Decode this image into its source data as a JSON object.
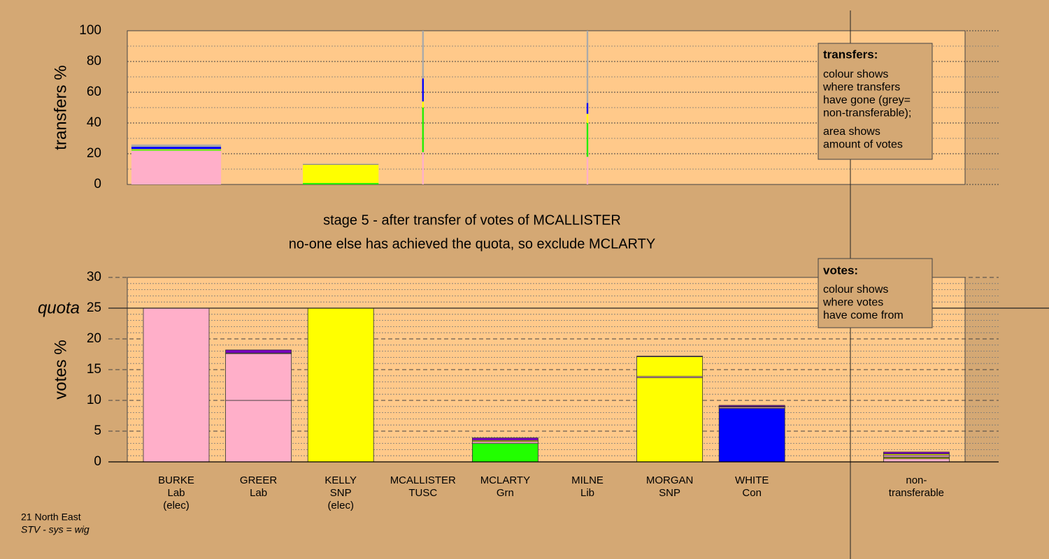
{
  "chart_data": [
    {
      "type": "stacked-bar",
      "y_label": "transfers %",
      "ylim": [
        0,
        100
      ],
      "yticks": [
        0,
        20,
        40,
        60,
        80,
        100
      ],
      "minor_grid": [
        10,
        30,
        50,
        70,
        90
      ],
      "bar_widths": [
        1.09,
        0,
        0.92,
        0.02,
        0,
        0.02,
        0,
        0,
        null,
        0
      ],
      "series": [
        {
          "color": "#ffafc9",
          "values": [
            22,
            0,
            0,
            21,
            0,
            18,
            0,
            0,
            null,
            0
          ]
        },
        {
          "color": "#22ee00",
          "values": [
            0.5,
            0,
            1,
            29,
            0,
            22,
            0,
            0,
            null,
            0
          ]
        },
        {
          "color": "#ffff00",
          "values": [
            0.5,
            0,
            12,
            4,
            0,
            6,
            0,
            0,
            null,
            0
          ]
        },
        {
          "color": "#0000ff",
          "values": [
            1.5,
            0,
            0.2,
            15,
            0,
            7,
            0,
            0,
            null,
            0
          ]
        },
        {
          "color": "#aaaaaa",
          "values": [
            1.5,
            0,
            0.3,
            31,
            0,
            47,
            0,
            0,
            null,
            0
          ]
        }
      ],
      "note": {
        "title": "transfers:",
        "paragraphs": [
          [
            "colour shows",
            "where transfers",
            "have gone (grey=",
            "non-transferable);"
          ],
          [
            "area shows",
            "amount of votes"
          ]
        ]
      }
    },
    {
      "type": "stacked-bar",
      "y_label": "votes %",
      "ylim": [
        0,
        30
      ],
      "yticks": [
        0,
        5,
        10,
        15,
        20,
        25,
        30
      ],
      "minor_grid": [
        1,
        2,
        3,
        4,
        6,
        7,
        8,
        9,
        11,
        12,
        13,
        14,
        16,
        17,
        18,
        19,
        21,
        22,
        23,
        24,
        26,
        27,
        28,
        29
      ],
      "quota": 25,
      "quota_label": "quota",
      "categories": [
        "BURKE",
        "GREER",
        "KELLY",
        "MCALLISTER",
        "MCLARTY",
        "MILNE",
        "MORGAN",
        "WHITE",
        null,
        "non-"
      ],
      "parties": [
        "Lab",
        "Lab",
        "SNP",
        "TUSC",
        "Grn",
        "Lib",
        "SNP",
        "Con",
        null,
        "transferable"
      ],
      "elected": [
        "(elec)",
        null,
        "(elec)",
        null,
        null,
        null,
        null,
        null,
        null,
        null
      ],
      "series": [
        {
          "color": "#ffafc9",
          "values": [
            25,
            10,
            0,
            0,
            0,
            0,
            0,
            0,
            null,
            0.5
          ]
        },
        {
          "color": "#ffff00",
          "values": [
            0,
            0,
            25,
            0,
            0,
            0,
            13.7,
            0,
            null,
            0.2
          ]
        },
        {
          "color": "#22ff00",
          "values": [
            0,
            0,
            0,
            0,
            3,
            0,
            0,
            0,
            null,
            0
          ]
        },
        {
          "color": "#0000ff",
          "values": [
            0,
            0,
            0,
            0,
            0,
            0,
            0,
            8.7,
            null,
            0.1
          ]
        },
        {
          "color": "#ffafc9",
          "values": [
            0,
            7.6,
            0,
            0,
            0.3,
            0,
            0.2,
            0.2,
            null,
            0.3
          ]
        },
        {
          "color": "#ffff00",
          "values": [
            0,
            0.1,
            0,
            0,
            0.2,
            0,
            3.2,
            0.1,
            null,
            0.2
          ]
        },
        {
          "color": "#7a00c0",
          "values": [
            0,
            0.5,
            0,
            0,
            0.4,
            0,
            0.1,
            0.2,
            null,
            0.3
          ]
        }
      ],
      "note": {
        "title": "votes:",
        "paragraphs": [
          [
            "colour shows",
            "where votes",
            "have come from"
          ]
        ]
      }
    }
  ],
  "stage_title": "stage 5 - after transfer of votes of MCALLISTER",
  "stage_note": "no-one else has achieved the quota, so exclude MCLARTY",
  "footer": {
    "region": "21 North East",
    "system": "STV - sys = wig"
  }
}
